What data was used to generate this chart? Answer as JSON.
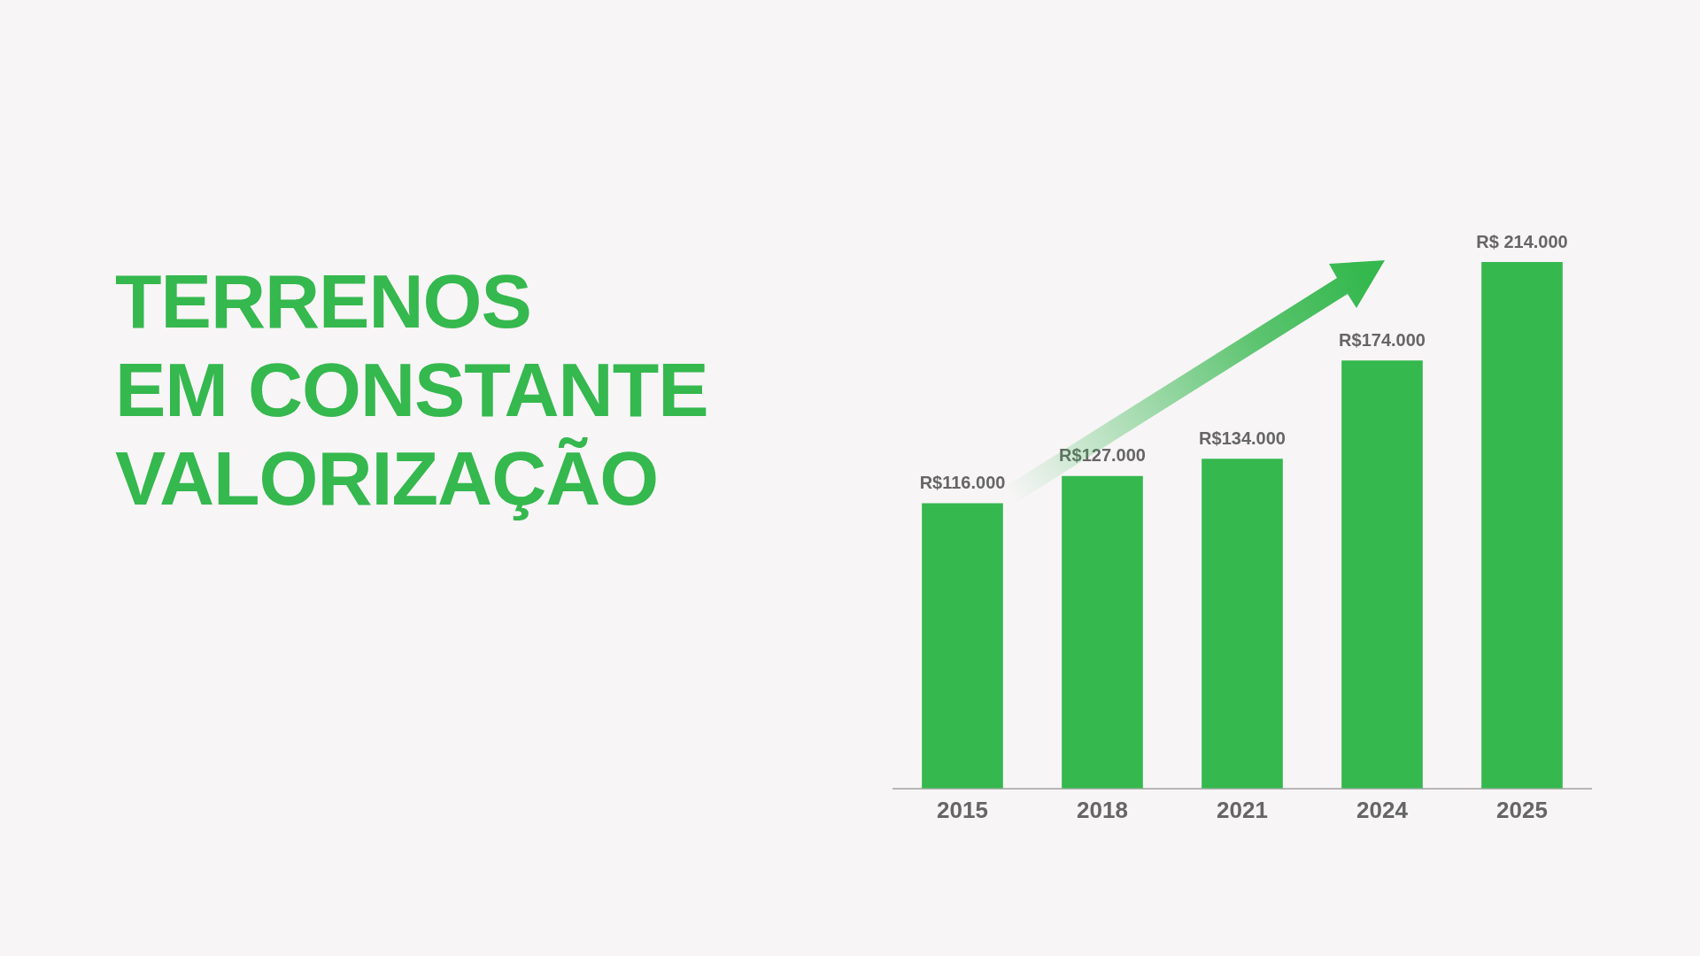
{
  "chart_data": {
    "type": "bar",
    "title": "TERRENOS\nEM CONSTANTE\nVALORIZAÇÃO",
    "categories": [
      "2015",
      "2018",
      "2021",
      "2024",
      "2025"
    ],
    "values": [
      116000,
      127000,
      134000,
      174000,
      214000
    ],
    "value_labels": [
      "R$116.000",
      "R$127.000",
      "R$134.000",
      "R$174.000",
      "R$ 214.000"
    ],
    "color": "#35b84e",
    "tick_labels": "x"
  }
}
